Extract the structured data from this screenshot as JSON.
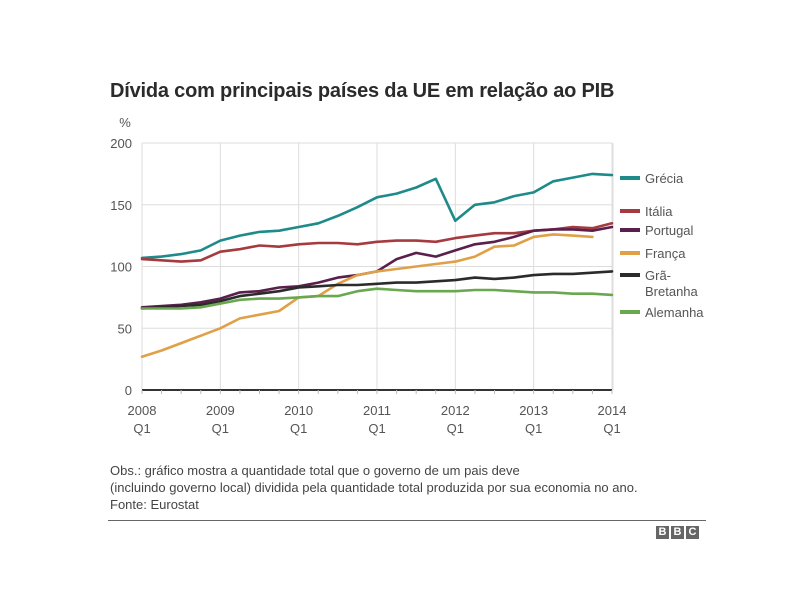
{
  "title": "Dívida com principais países da UE em relação ao PIB",
  "notes": {
    "line1": "Obs.: gráfico mostra a quantidade total que o governo de um pais deve",
    "line2": "(incluindo governo local) dividida pela quantidade total produzida por sua economia no ano.",
    "source": "Fonte: Eurostat"
  },
  "logo": [
    "B",
    "B",
    "C"
  ],
  "chart_data": {
    "type": "line",
    "title": "Dívida com principais países da UE em relação ao PIB",
    "xlabel": "",
    "ylabel": "%",
    "ylim": [
      0,
      200
    ],
    "yticks": [
      0,
      50,
      100,
      150,
      200
    ],
    "grid": true,
    "legend_position": "right",
    "x_ticks": [
      {
        "year": "2008",
        "q": "Q1"
      },
      {
        "year": "2009",
        "q": "Q1"
      },
      {
        "year": "2010",
        "q": "Q1"
      },
      {
        "year": "2011",
        "q": "Q1"
      },
      {
        "year": "2012",
        "q": "Q1"
      },
      {
        "year": "2013",
        "q": "Q1"
      },
      {
        "year": "2014",
        "q": "Q1"
      }
    ],
    "x": [
      "2008Q1",
      "2008Q2",
      "2008Q3",
      "2008Q4",
      "2009Q1",
      "2009Q2",
      "2009Q3",
      "2009Q4",
      "2010Q1",
      "2010Q2",
      "2010Q3",
      "2010Q4",
      "2011Q1",
      "2011Q2",
      "2011Q3",
      "2011Q4",
      "2012Q1",
      "2012Q2",
      "2012Q3",
      "2012Q4",
      "2013Q1",
      "2013Q2",
      "2013Q3",
      "2013Q4",
      "2014Q1"
    ],
    "series": [
      {
        "name": "Grécia",
        "legend": [
          "Grécia"
        ],
        "color": "#1e8a8a",
        "values": [
          107,
          108,
          110,
          113,
          121,
          125,
          128,
          129,
          132,
          135,
          141,
          148,
          156,
          159,
          164,
          171,
          137,
          150,
          152,
          157,
          160,
          169,
          172,
          175,
          174
        ]
      },
      {
        "name": "Itália",
        "legend": [
          "Itália"
        ],
        "color": "#a53a3f",
        "values": [
          106,
          105,
          104,
          105,
          112,
          114,
          117,
          116,
          118,
          119,
          119,
          118,
          120,
          121,
          121,
          120,
          123,
          125,
          127,
          127,
          129,
          130,
          132,
          131,
          135
        ]
      },
      {
        "name": "Portugal",
        "legend": [
          "Portugal"
        ],
        "color": "#5a1f4a",
        "values": [
          67,
          68,
          69,
          71,
          74,
          79,
          80,
          83,
          84,
          87,
          91,
          93,
          96,
          106,
          111,
          108,
          113,
          118,
          120,
          124,
          129,
          130,
          130,
          129,
          132
        ]
      },
      {
        "name": "França",
        "legend": [
          "França"
        ],
        "color": "#e0a048",
        "values": [
          27,
          32,
          38,
          44,
          50,
          58,
          61,
          64,
          75,
          76,
          86,
          93,
          96,
          98,
          100,
          102,
          104,
          108,
          116,
          117,
          124,
          126,
          125,
          124,
          null
        ]
      },
      {
        "name": "Grã-Bretanha",
        "legend": [
          "Grã-",
          "Bretanha"
        ],
        "color": "#2b2b2b",
        "values": [
          66,
          67,
          68,
          69,
          72,
          76,
          78,
          80,
          83,
          84,
          85,
          85,
          86,
          87,
          87,
          88,
          89,
          91,
          90,
          91,
          93,
          94,
          94,
          95,
          96
        ]
      },
      {
        "name": "Alemanha",
        "legend": [
          "Alemanha"
        ],
        "color": "#6aa84f",
        "values": [
          66,
          66,
          66,
          67,
          70,
          73,
          74,
          74,
          75,
          76,
          76,
          80,
          82,
          81,
          80,
          80,
          80,
          81,
          81,
          80,
          79,
          79,
          78,
          78,
          77
        ]
      }
    ]
  }
}
